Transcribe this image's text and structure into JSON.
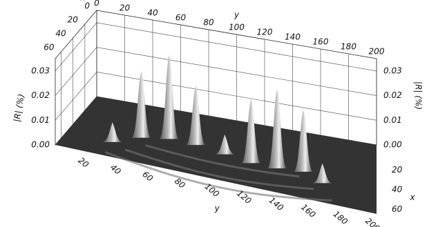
{
  "chart_data": {
    "type": "surface",
    "xlabel": "y",
    "ylabel": "x",
    "zlabel": "|R| (%)",
    "xlim": [
      0,
      200
    ],
    "xticks": [
      0,
      20,
      40,
      60,
      80,
      100,
      120,
      140,
      160,
      180,
      200
    ],
    "ylim": [
      0,
      70
    ],
    "yticks": [
      0,
      20,
      40,
      60
    ],
    "zlim": [
      0,
      0.035
    ],
    "zticks": [
      {
        "value": 0,
        "label": "0.00"
      },
      0.01,
      0.02,
      0.03
    ],
    "peaks": {
      "x": [
        45,
        62,
        80,
        100,
        118,
        135,
        152,
        165,
        30
      ],
      "y": [
        40,
        35,
        36,
        40,
        44,
        44,
        42,
        50,
        52
      ],
      "values": [
        0.027,
        0.034,
        0.024,
        0.008,
        0.026,
        0.032,
        0.025,
        0.008,
        0.008
      ]
    },
    "color": "#bcbcbc",
    "floor_color": "#333333",
    "grid": true
  }
}
